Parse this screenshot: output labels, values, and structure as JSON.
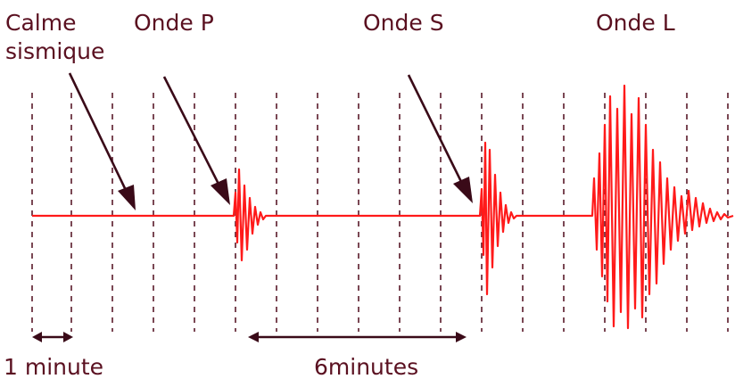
{
  "labels": {
    "calm_line1": "Calme",
    "calm_line2": "sismique",
    "p_wave": "Onde P",
    "s_wave": "Onde S",
    "l_wave": "Onde L",
    "one_minute": "1 minute",
    "six_minutes": "6minutes"
  },
  "colors": {
    "signal": "#ff1a1a",
    "arrow": "#3a0a18",
    "grid": "#5a1a2a",
    "text": "#5a1020"
  }
}
